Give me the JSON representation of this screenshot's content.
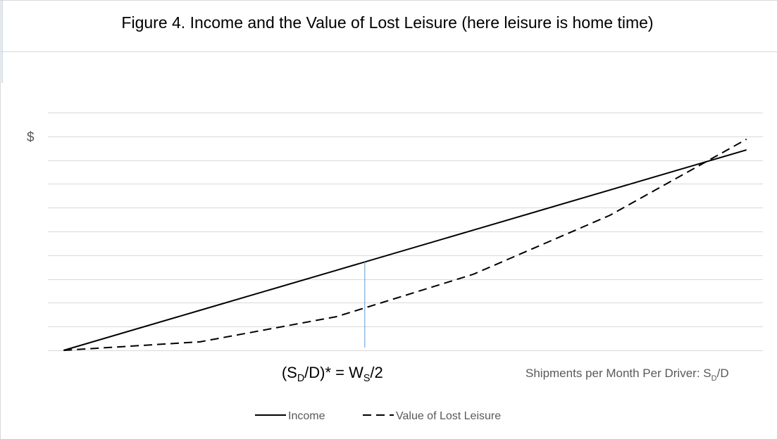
{
  "chart_data": {
    "type": "line",
    "title": "Figure 4. Income and the Value of Lost Leisure (here leisure is home time)",
    "ylabel": "$",
    "xlabel": [
      {
        "text": "Shipments per Month Per Driver: S"
      },
      {
        "text": "D",
        "sub": true
      },
      {
        "text": "/D"
      }
    ],
    "x": [
      0,
      2,
      4,
      6,
      8,
      10
    ],
    "xlim": [
      -0.23,
      10.24
    ],
    "ylim": [
      0,
      10
    ],
    "yticks": [
      0,
      1,
      2,
      3,
      4,
      5,
      6,
      7,
      8,
      9,
      10
    ],
    "grid": true,
    "series": [
      {
        "name": "Income",
        "color": "#000000",
        "dash": false,
        "values": [
          0,
          1.686,
          3.372,
          5.058,
          6.744,
          8.43
        ]
      },
      {
        "name": "Value of Lost Leisure",
        "color": "#000000",
        "dash": true,
        "values": [
          0,
          0.36,
          1.42,
          3.2,
          5.68,
          8.88
        ]
      }
    ],
    "marker": {
      "x": 4.41,
      "y": 3.72,
      "color": "#5b9bd5",
      "label": [
        {
          "text": "(S"
        },
        {
          "text": "D",
          "sub": true
        },
        {
          "text": "/D)* = W"
        },
        {
          "text": "S",
          "sub": true
        },
        {
          "text": "/2"
        }
      ]
    },
    "legend": "bottom"
  }
}
